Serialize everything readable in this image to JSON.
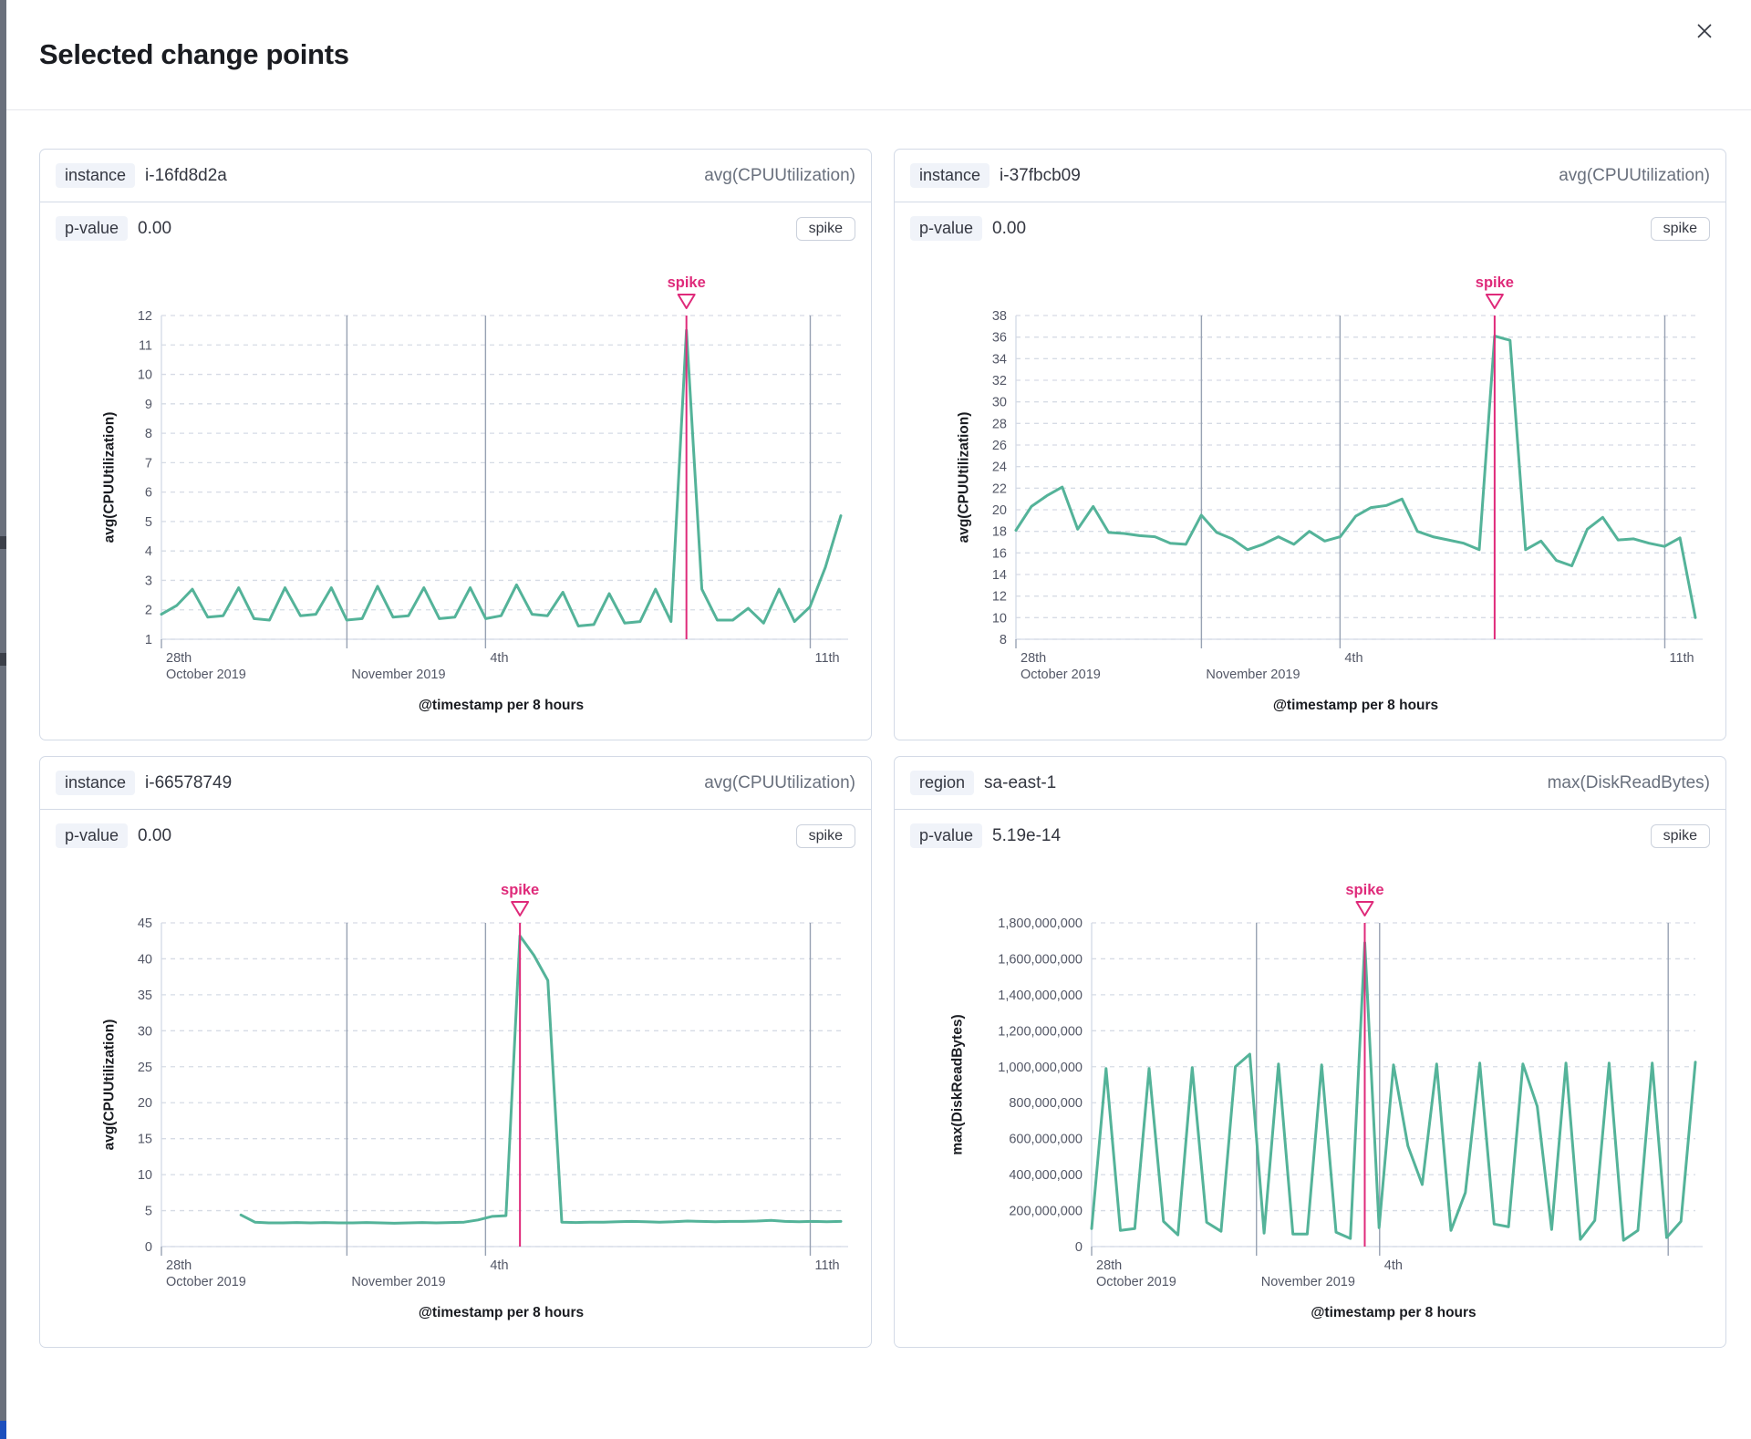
{
  "modal": {
    "title": "Selected change points",
    "close_label": "close"
  },
  "theme": {
    "line_color": "#54B399",
    "spike_color": "#DF2A7A",
    "grid_dashed_color": "#D6DBE5",
    "grid_vline_color": "#98A2B3",
    "axis_line_color": "#D3DAE6",
    "tick_text_color": "#535766",
    "axis_title_color": "#1A1C21"
  },
  "panels": [
    {
      "field_label": "instance",
      "field_value": "i-16fd8d2a",
      "metric": "avg(CPUUtilization)",
      "p_label": "p-value",
      "p_value": "0.00",
      "change_type": "spike",
      "chart_data": {
        "type": "line",
        "ylabel": "avg(CPUUtilization)",
        "xlabel": "@timestamp per 8 hours",
        "ylim": [
          1,
          12
        ],
        "yticks": [
          1,
          2,
          3,
          4,
          5,
          6,
          7,
          8,
          9,
          10,
          11,
          12
        ],
        "ytick_labels": [
          "1",
          "2",
          "3",
          "4",
          "5",
          "6",
          "7",
          "8",
          "9",
          "10",
          "11",
          "12"
        ],
        "x_start_frac": 0,
        "spike_index": 34,
        "annotation": "spike",
        "values": [
          1.85,
          2.15,
          2.7,
          1.75,
          1.8,
          2.75,
          1.7,
          1.65,
          2.75,
          1.8,
          1.85,
          2.75,
          1.65,
          1.7,
          2.8,
          1.75,
          1.8,
          2.75,
          1.7,
          1.75,
          2.75,
          1.7,
          1.8,
          2.85,
          1.85,
          1.8,
          2.6,
          1.45,
          1.5,
          2.55,
          1.55,
          1.6,
          2.7,
          1.6,
          11.5,
          2.7,
          1.65,
          1.65,
          2.05,
          1.55,
          2.7,
          1.6,
          2.1,
          3.45,
          5.2
        ],
        "xticks": [
          {
            "frac": 0.0,
            "line1": "28th",
            "line2": "October 2019"
          },
          {
            "frac": 0.273,
            "line1": "",
            "line2": "November 2019"
          },
          {
            "frac": 0.477,
            "line1": "4th",
            "line2": ""
          },
          {
            "frac": 0.955,
            "line1": "11th",
            "line2": ""
          }
        ],
        "vlines": [
          0.273,
          0.477,
          0.955
        ]
      }
    },
    {
      "field_label": "instance",
      "field_value": "i-37fbcb09",
      "metric": "avg(CPUUtilization)",
      "p_label": "p-value",
      "p_value": "0.00",
      "change_type": "spike",
      "chart_data": {
        "type": "line",
        "ylabel": "avg(CPUUtilization)",
        "xlabel": "@timestamp per 8 hours",
        "ylim": [
          8,
          38
        ],
        "yticks": [
          8,
          10,
          12,
          14,
          16,
          18,
          20,
          22,
          24,
          26,
          28,
          30,
          32,
          34,
          36,
          38
        ],
        "ytick_labels": [
          "8",
          "10",
          "12",
          "14",
          "16",
          "18",
          "20",
          "22",
          "24",
          "26",
          "28",
          "30",
          "32",
          "34",
          "36",
          "38"
        ],
        "x_start_frac": 0,
        "spike_index": 31,
        "annotation": "spike",
        "values": [
          18.1,
          20.3,
          21.3,
          22.1,
          18.2,
          20.3,
          17.9,
          17.8,
          17.6,
          17.5,
          16.9,
          16.8,
          19.5,
          17.9,
          17.3,
          16.3,
          16.8,
          17.5,
          16.8,
          18.0,
          17.1,
          17.5,
          19.4,
          20.2,
          20.4,
          21.0,
          18.0,
          17.5,
          17.2,
          16.9,
          16.3,
          36.1,
          35.7,
          16.3,
          17.1,
          15.3,
          14.8,
          18.2,
          19.3,
          17.2,
          17.3,
          16.9,
          16.6,
          17.4,
          10.0
        ],
        "xticks": [
          {
            "frac": 0.0,
            "line1": "28th",
            "line2": "October 2019"
          },
          {
            "frac": 0.273,
            "line1": "",
            "line2": "November 2019"
          },
          {
            "frac": 0.477,
            "line1": "4th",
            "line2": ""
          },
          {
            "frac": 0.955,
            "line1": "11th",
            "line2": ""
          }
        ],
        "vlines": [
          0.273,
          0.477,
          0.955
        ]
      }
    },
    {
      "field_label": "instance",
      "field_value": "i-66578749",
      "metric": "avg(CPUUtilization)",
      "p_label": "p-value",
      "p_value": "0.00",
      "change_type": "spike",
      "chart_data": {
        "type": "line",
        "ylabel": "avg(CPUUtilization)",
        "xlabel": "@timestamp per 8 hours",
        "ylim": [
          0,
          45
        ],
        "yticks": [
          0,
          5,
          10,
          15,
          20,
          25,
          30,
          35,
          40,
          45
        ],
        "ytick_labels": [
          "0",
          "5",
          "10",
          "15",
          "20",
          "25",
          "30",
          "35",
          "40",
          "45"
        ],
        "x_start_frac": 0.117,
        "spike_index": 20,
        "annotation": "spike",
        "values": [
          4.4,
          3.4,
          3.3,
          3.3,
          3.35,
          3.3,
          3.35,
          3.3,
          3.3,
          3.35,
          3.3,
          3.25,
          3.3,
          3.35,
          3.3,
          3.35,
          3.4,
          3.7,
          4.2,
          4.3,
          43.2,
          40.5,
          37.0,
          3.4,
          3.35,
          3.4,
          3.4,
          3.45,
          3.5,
          3.45,
          3.4,
          3.45,
          3.55,
          3.5,
          3.45,
          3.5,
          3.5,
          3.55,
          3.65,
          3.5,
          3.45,
          3.5,
          3.45,
          3.5
        ],
        "xticks": [
          {
            "frac": 0.0,
            "line1": "28th",
            "line2": "October 2019"
          },
          {
            "frac": 0.273,
            "line1": "",
            "line2": "November 2019"
          },
          {
            "frac": 0.477,
            "line1": "4th",
            "line2": ""
          },
          {
            "frac": 0.955,
            "line1": "11th",
            "line2": ""
          }
        ],
        "vlines": [
          0.273,
          0.477,
          0.955
        ]
      }
    },
    {
      "field_label": "region",
      "field_value": "sa-east-1",
      "metric": "max(DiskReadBytes)",
      "p_label": "p-value",
      "p_value": "5.19e-14",
      "change_type": "spike",
      "chart_data": {
        "type": "line",
        "ylabel": "max(DiskReadBytes)",
        "xlabel": "@timestamp per 8 hours",
        "ylim": [
          0,
          1800000000
        ],
        "yticks": [
          0,
          200000000,
          400000000,
          600000000,
          800000000,
          1000000000,
          1200000000,
          1400000000,
          1600000000,
          1800000000
        ],
        "ytick_labels": [
          "0",
          "200,000,000",
          "400,000,000",
          "600,000,000",
          "800,000,000",
          "1,000,000,000",
          "1,200,000,000",
          "1,400,000,000",
          "1,600,000,000",
          "1,800,000,000"
        ],
        "x_start_frac": 0,
        "spike_index": 19,
        "annotation": "spike",
        "values": [
          100000000,
          990000000,
          90000000,
          100000000,
          990000000,
          140000000,
          65000000,
          995000000,
          135000000,
          85000000,
          1000000000,
          1070000000,
          75000000,
          1015000000,
          70000000,
          70000000,
          1010000000,
          80000000,
          45000000,
          1690000000,
          105000000,
          1010000000,
          560000000,
          345000000,
          1015000000,
          90000000,
          300000000,
          1020000000,
          125000000,
          110000000,
          1015000000,
          780000000,
          95000000,
          1020000000,
          40000000,
          145000000,
          1020000000,
          35000000,
          90000000,
          1020000000,
          50000000,
          140000000,
          1025000000
        ],
        "xticks": [
          {
            "frac": 0.0,
            "line1": "28th",
            "line2": "October 2019"
          },
          {
            "frac": 0.273,
            "line1": "",
            "line2": "November 2019"
          },
          {
            "frac": 0.477,
            "line1": "4th",
            "line2": ""
          }
        ],
        "vlines": [
          0.273,
          0.477,
          0.955
        ]
      }
    }
  ]
}
